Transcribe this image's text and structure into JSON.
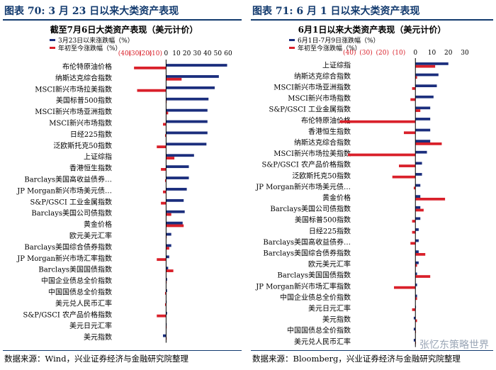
{
  "chart_data": [
    {
      "type": "bar",
      "figure_label": "图表 70:  3 月 23 日以来大类资产表现",
      "title": "截至7月6日大类资产表现（美元计价）",
      "source": "数据来源：Wind，兴业证券经济与金融研究院整理",
      "legend_position": "top",
      "grid": false,
      "series": [
        {
          "name": "3月23日以来涨跌幅（%）",
          "color": "#1b2e7d"
        },
        {
          "name": "年初至今涨跌幅（%）",
          "color": "#d9202a"
        }
      ],
      "top_axis": {
        "min": -40,
        "max": 60,
        "ticks": [
          -40,
          -30,
          -20,
          -10,
          0,
          10,
          20,
          30,
          40,
          50,
          60
        ],
        "tick_labels": [
          "(40)",
          "(30)",
          "(20)",
          "(10)",
          "0",
          "10",
          "20",
          "30",
          "40",
          "50",
          "60"
        ]
      },
      "categories": [
        "布伦特原油价格",
        "纳斯达克综合指数",
        "MSCI新兴市场拉美指数",
        "美国标普500指数",
        "MSCI新兴市场亚洲指数",
        "MSCI新兴市场指数",
        "日经225指数",
        "泛欧斯托克50指数",
        "上证综指",
        "香港恒生指数",
        "Barclays美国高收益债券…",
        "JP Morgan新兴市场美元债…",
        "S&P/GSCI 工业金属指数",
        "Barclays美国公司债指数",
        "黄金价格",
        "欧元美元汇率",
        "Barclays美国综合债券指数",
        "JP Morgan新兴市场汇率指数",
        "Barclays美国国债指数",
        "中国企业债总全价指数",
        "中国国债总全价指数",
        "美元兑人民币汇率",
        "S&P/GSCI 农产品价格指数",
        "美元日元汇率",
        "美元指数"
      ],
      "values_since": [
        59,
        51,
        47,
        41,
        40,
        40,
        40,
        39,
        27,
        22,
        22,
        20,
        17,
        18,
        16,
        5,
        5,
        3,
        2,
        1,
        1,
        0.5,
        1,
        0.5,
        -3
      ],
      "values_ytd": [
        -31,
        15,
        -28,
        0,
        2,
        -3,
        -1,
        -9,
        8,
        -5,
        -1,
        -3,
        -5,
        5,
        17,
        0,
        3,
        -9,
        7,
        0,
        -1,
        -1,
        -9,
        0,
        0
      ]
    },
    {
      "type": "bar",
      "figure_label": "图表 71:  6 月 1 日以来大类资产表现",
      "title": "6月1日以来大类资产表现（美元计价）",
      "source": "数据来源：Bloomberg，兴业证券经济与金融研究院整理",
      "legend_position": "top",
      "grid": false,
      "series": [
        {
          "name": "6月1日-7月9日涨跌幅（%）",
          "color": "#1b2e7d"
        },
        {
          "name": "年初至今涨跌幅（%）",
          "color": "#d9202a"
        }
      ],
      "top_axis": {
        "min": -50,
        "max": 30,
        "ticks": [
          -50,
          -40,
          -30,
          -20,
          -10,
          0,
          10,
          20,
          30
        ],
        "tick_labels": [
          "",
          "(40)",
          "(30)",
          "(20)",
          "(10)",
          "0",
          "10",
          "20",
          "30"
        ]
      },
      "categories": [
        "上证综指",
        "纳斯达克综合指数",
        "MSCI新兴市场亚洲指数",
        "MSCI新兴市场指数",
        "S&P/GSCI 工业金属指数",
        "布伦特原油价格",
        "香港恒生指数",
        "纳斯达克综合指数",
        "MSCI新兴市场拉美指数",
        "S&P/GSCI 农产品价格指数",
        "泛欧斯托克50指数",
        "JP Morgan新兴市场美元债…",
        "黄金价格",
        "Barclays美国公司债指数",
        "美国标普500指数",
        "日经225指数",
        "Barclays美国高收益债券…",
        "Barclays美国综合债券指数",
        "欧元美元汇率",
        "Barclays美国国债指数",
        "JP Morgan新兴市场汇率指数",
        "中国企业债总全价指数",
        "美元日元汇率",
        "美元指数",
        "中国国债总全价指数",
        "美元兑人民币汇率"
      ],
      "values_since": [
        20,
        14,
        13,
        11,
        9,
        9,
        9,
        9,
        7,
        4,
        4,
        3,
        3,
        3,
        3,
        2,
        2,
        2,
        2,
        1,
        1,
        1,
        0,
        -1,
        -1,
        -1
      ],
      "values_ytd": [
        12,
        1,
        -2,
        -3,
        3,
        -46,
        -7,
        16,
        -41,
        -10,
        -14,
        -1,
        18,
        5,
        -2,
        -2,
        -3,
        6,
        1,
        9,
        -13,
        1,
        -2,
        1,
        0,
        0
      ]
    }
  ],
  "watermark": "张忆东策略世界"
}
